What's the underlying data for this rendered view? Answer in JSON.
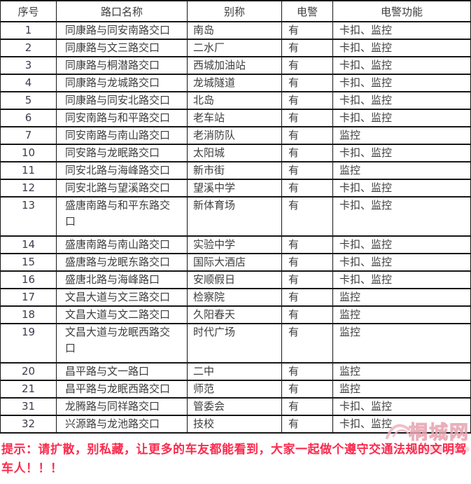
{
  "table": {
    "headers": [
      "序号",
      "路口名称",
      "别称",
      "电警",
      "电警功能"
    ],
    "rows": [
      {
        "no": "1",
        "name": "同康路与同安南路交口",
        "alias": "南岛",
        "police": "有",
        "functions": "卡扣、监控"
      },
      {
        "no": "2",
        "name": "同康路与文三路交口",
        "alias": "二水厂",
        "police": "有",
        "functions": "卡扣、监控"
      },
      {
        "no": "3",
        "name": "同康路与桐潜路交口",
        "alias": "西城加油站",
        "police": "有",
        "functions": "卡扣、监控"
      },
      {
        "no": "4",
        "name": "同康路与龙城路交口",
        "alias": "龙城隧道",
        "police": "有",
        "functions": "卡扣、监控"
      },
      {
        "no": "5",
        "name": "同康路与同安北路交口",
        "alias": "北岛",
        "police": "有",
        "functions": "卡扣、监控"
      },
      {
        "no": "6",
        "name": "同安南路与和平路交口",
        "alias": "老车站",
        "police": "有",
        "functions": "卡扣、监控"
      },
      {
        "no": "7",
        "name": "同安南路与南山路交口",
        "alias": "老消防队",
        "police": "有",
        "functions": "监控"
      },
      {
        "no": "10",
        "name": "同安路与龙眠路交口",
        "alias": "太阳城",
        "police": "有",
        "functions": "卡扣、监控"
      },
      {
        "no": "11",
        "name": "同安北路与海峰路交口",
        "alias": "新市街",
        "police": "有",
        "functions": "监控"
      },
      {
        "no": "12",
        "name": "同安北路与望溪路交口",
        "alias": "望溪中学",
        "police": "有",
        "functions": "卡扣、监控"
      },
      {
        "no": "13",
        "name": "盛唐南路与和平东路交\n口",
        "alias": "新体育场",
        "police": "有",
        "functions": "卡扣、监控"
      },
      {
        "no": "14",
        "name": "盛唐南路与南山路交口",
        "alias": "实验中学",
        "police": "有",
        "functions": "卡扣、监控"
      },
      {
        "no": "15",
        "name": "盛唐路与龙眠东路交口",
        "alias": "国际大酒店",
        "police": "有",
        "functions": "卡扣、监控"
      },
      {
        "no": "16",
        "name": "盛唐北路与海峰路口",
        "alias": "安顺假日",
        "police": "有",
        "functions": "卡扣、监控"
      },
      {
        "no": "17",
        "name": "文昌大道与文三路交口",
        "alias": "检察院",
        "police": "有",
        "functions": "监控"
      },
      {
        "no": "18",
        "name": "文昌大道与文二路交口",
        "alias": "久阳春天",
        "police": "有",
        "functions": "监控"
      },
      {
        "no": "19",
        "name": "文昌大道与龙眠西路交\n口",
        "alias": "时代广场",
        "police": "有",
        "functions": "监控"
      },
      {
        "no": "20",
        "name": "昌平路与文一路口",
        "alias": "二中",
        "police": "有",
        "functions": "监控"
      },
      {
        "no": "21",
        "name": "昌平路与龙眠西路交口",
        "alias": "师范",
        "police": "有",
        "functions": "监控"
      },
      {
        "no": "31",
        "name": "龙腾路与同祥路交口",
        "alias": "管委会",
        "police": "有",
        "functions": "卡扣、监控"
      },
      {
        "no": "32",
        "name": "兴源路与龙池路交口",
        "alias": "技校",
        "police": "有",
        "functions": "卡扣、监控"
      }
    ]
  },
  "footer": {
    "notice": "提示：请扩散，别私藏，让更多的车友都能看到，大家一起做个遵守交通法规的文明驾车人！！！"
  },
  "watermark": {
    "text": "桐城网"
  },
  "colors": {
    "notice_red": "#fb2b4e",
    "table_border": "#161616",
    "watermark_pink": "#eeb3be"
  }
}
